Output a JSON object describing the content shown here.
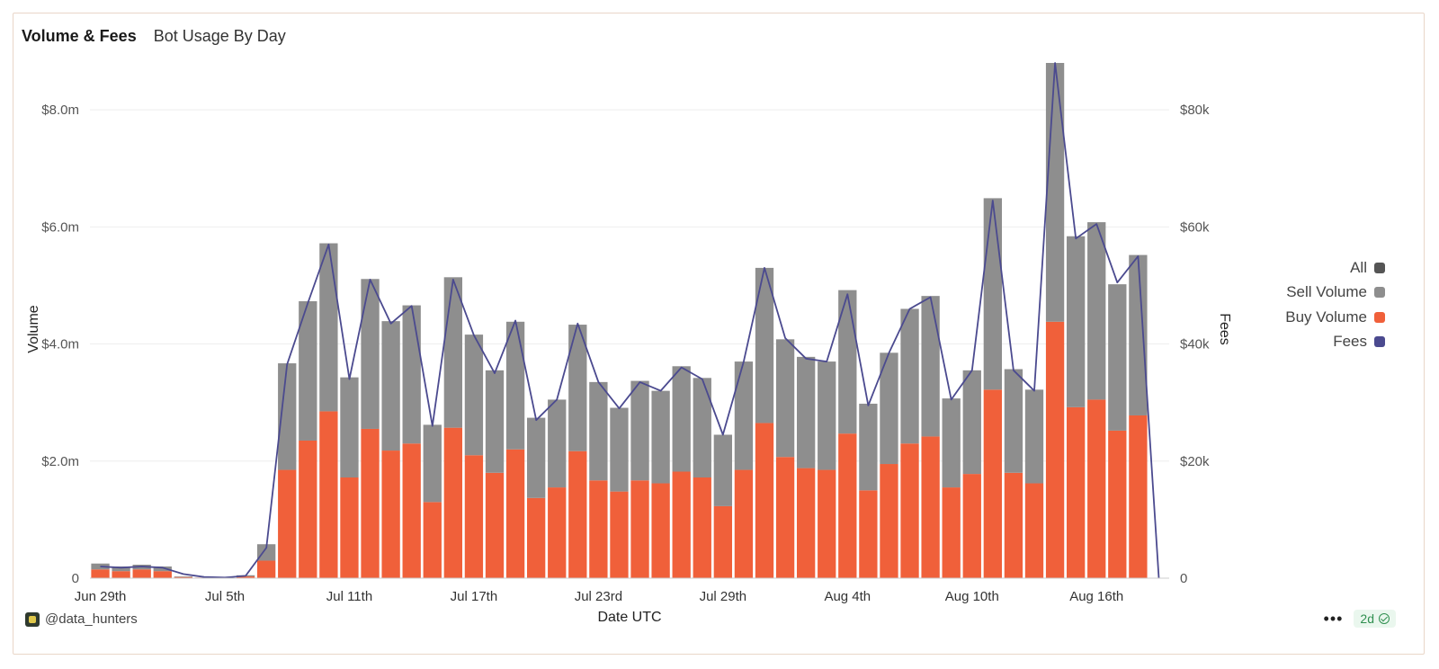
{
  "header": {
    "title": "Volume & Fees",
    "subtitle": "Bot Usage By Day"
  },
  "legend": [
    {
      "label": "All",
      "color": "#555555"
    },
    {
      "label": "Sell Volume",
      "color": "#8e8e8e"
    },
    {
      "label": "Buy Volume",
      "color": "#f0603a"
    },
    {
      "label": "Fees",
      "color": "#4b4a8f"
    }
  ],
  "footer": {
    "author": "@data_hunters",
    "freshness": "2d",
    "more_label": "•••"
  },
  "chart_data": {
    "type": "bar",
    "stacked": true,
    "xlabel": "Date UTC",
    "ylabel": "Volume",
    "y2label": "Fees",
    "ylim": [
      0,
      8.8
    ],
    "y_unit": "$ millions",
    "y2lim": [
      0,
      88000
    ],
    "yticks": [
      "0",
      "$2.0m",
      "$4.0m",
      "$6.0m",
      "$8.0m"
    ],
    "y2ticks": [
      "0",
      "$20k",
      "$40k",
      "$60k",
      "$80k"
    ],
    "xtick_labels": [
      "Jun 29th",
      "Jul 5th",
      "Jul 11th",
      "Jul 17th",
      "Jul 23rd",
      "Jul 29th",
      "Aug 4th",
      "Aug 10th",
      "Aug 16th"
    ],
    "categories": [
      "Jun 29",
      "Jun 30",
      "Jul 1",
      "Jul 2",
      "Jul 3",
      "Jul 4",
      "Jul 5",
      "Jul 6",
      "Jul 7",
      "Jul 8",
      "Jul 9",
      "Jul 10",
      "Jul 11",
      "Jul 12",
      "Jul 13",
      "Jul 14",
      "Jul 15",
      "Jul 16",
      "Jul 17",
      "Jul 18",
      "Jul 19",
      "Jul 20",
      "Jul 21",
      "Jul 22",
      "Jul 23",
      "Jul 24",
      "Jul 25",
      "Jul 26",
      "Jul 27",
      "Jul 28",
      "Jul 29",
      "Jul 30",
      "Jul 31",
      "Aug 1",
      "Aug 2",
      "Aug 3",
      "Aug 4",
      "Aug 5",
      "Aug 6",
      "Aug 7",
      "Aug 8",
      "Aug 9",
      "Aug 10",
      "Aug 11",
      "Aug 12",
      "Aug 13",
      "Aug 14",
      "Aug 15",
      "Aug 16",
      "Aug 17",
      "Aug 18",
      "Aug 19"
    ],
    "series": [
      {
        "name": "Buy Volume",
        "type": "bar",
        "values": [
          0.15,
          0.12,
          0.15,
          0.12,
          0.02,
          0.01,
          0.01,
          0.03,
          0.3,
          1.85,
          2.35,
          2.85,
          1.72,
          2.55,
          2.18,
          2.3,
          1.3,
          2.57,
          2.1,
          1.8,
          2.2,
          1.37,
          1.55,
          2.17,
          1.67,
          1.48,
          1.67,
          1.62,
          1.82,
          1.72,
          1.23,
          1.85,
          2.65,
          2.07,
          1.88,
          1.85,
          2.47,
          1.5,
          1.95,
          2.3,
          2.42,
          1.55,
          1.78,
          3.22,
          1.8,
          1.62,
          4.38,
          2.92,
          3.05,
          2.52,
          2.78,
          0.0
        ]
      },
      {
        "name": "Sell Volume",
        "type": "bar",
        "values": [
          0.1,
          0.08,
          0.08,
          0.08,
          0.01,
          0.0,
          0.0,
          0.02,
          0.28,
          1.82,
          2.38,
          2.87,
          1.71,
          2.56,
          2.21,
          2.36,
          1.32,
          2.57,
          2.06,
          1.75,
          2.18,
          1.37,
          1.5,
          2.16,
          1.68,
          1.43,
          1.7,
          1.58,
          1.8,
          1.7,
          1.22,
          1.85,
          2.65,
          2.01,
          1.9,
          1.85,
          2.45,
          1.48,
          1.9,
          2.3,
          2.4,
          1.52,
          1.77,
          3.27,
          1.77,
          1.6,
          4.42,
          2.92,
          3.03,
          2.5,
          2.74,
          0.0
        ]
      },
      {
        "name": "Fees",
        "type": "line",
        "axis": "right",
        "values": [
          2000,
          1800,
          2000,
          1800,
          700,
          200,
          100,
          400,
          5200,
          36500,
          47000,
          57000,
          34000,
          51000,
          43500,
          46500,
          26000,
          51000,
          41500,
          35000,
          44000,
          27000,
          30500,
          43500,
          33500,
          29000,
          33500,
          32000,
          36000,
          34000,
          24500,
          37000,
          53000,
          41000,
          37500,
          37000,
          48500,
          29500,
          38500,
          46000,
          48000,
          30500,
          35500,
          64500,
          35500,
          32000,
          88000,
          58000,
          60500,
          50500,
          55000,
          0
        ]
      }
    ]
  }
}
